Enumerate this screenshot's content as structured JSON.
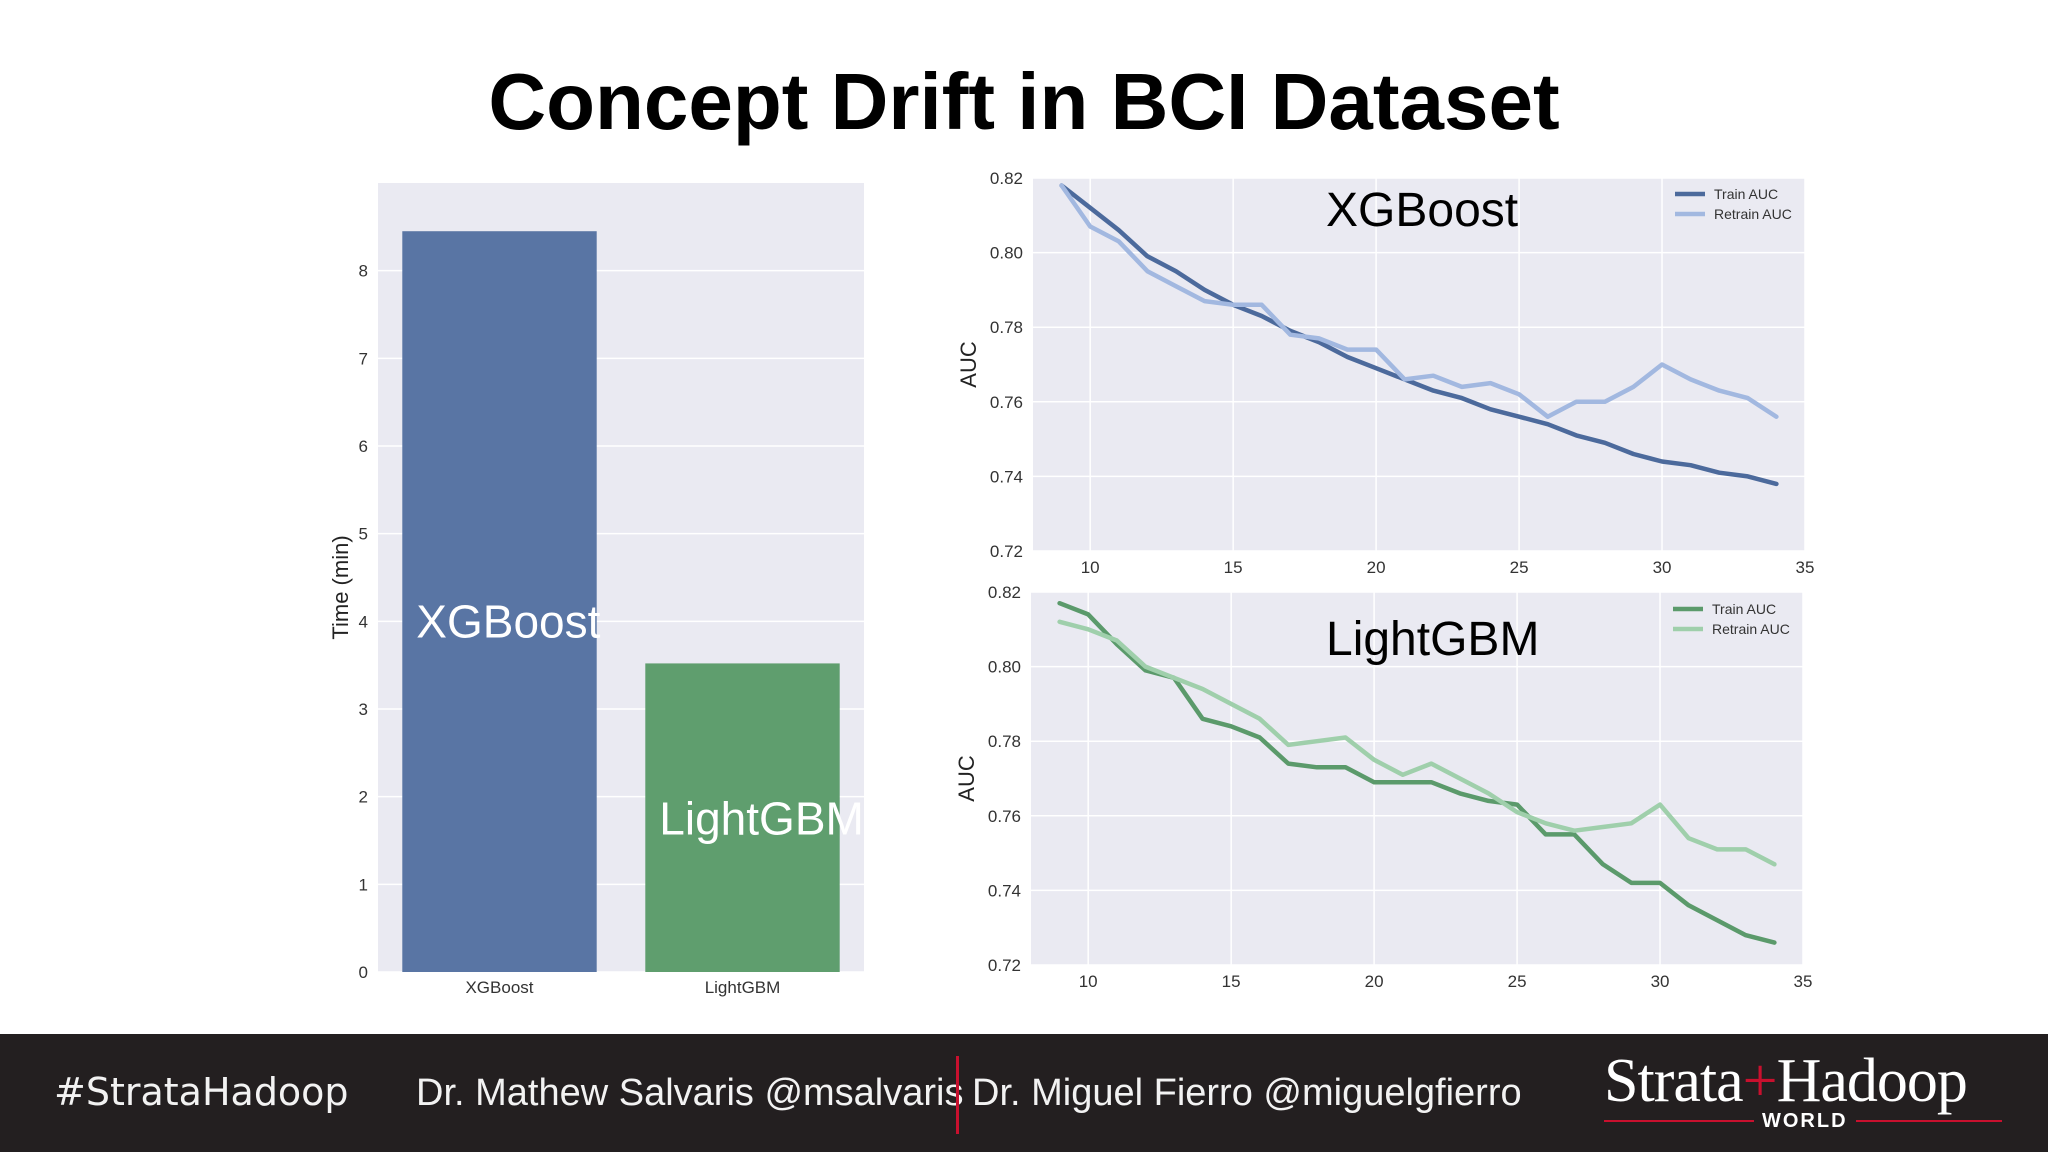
{
  "slide": {
    "title": "Concept Drift in BCI Dataset"
  },
  "chart_data": [
    {
      "type": "bar",
      "categories": [
        "XGBoost",
        "LightGBM"
      ],
      "values": [
        8.45,
        3.52
      ],
      "colors": [
        "#5975a4",
        "#5f9e6e"
      ],
      "bar_annotations": [
        "XGBoost",
        "LightGBM"
      ],
      "xlabel": "",
      "ylabel": "Time (min)",
      "ylim": [
        0,
        9.0
      ],
      "yticks": [
        0,
        1,
        2,
        3,
        4,
        5,
        6,
        7,
        8
      ],
      "grid": true,
      "background": "#eaeaf2"
    },
    {
      "type": "line",
      "annotation": "XGBoost",
      "ylabel": "AUC",
      "xlim": [
        8,
        35
      ],
      "ylim": [
        0.72,
        0.82
      ],
      "xticks": [
        10,
        15,
        20,
        25,
        30,
        35
      ],
      "yticks": [
        "0.72",
        "0.74",
        "0.76",
        "0.78",
        "0.80",
        "0.82"
      ],
      "grid": true,
      "legend_position": "top-right",
      "x": [
        9,
        10,
        11,
        12,
        13,
        14,
        15,
        16,
        17,
        18,
        19,
        20,
        21,
        22,
        23,
        24,
        25,
        26,
        27,
        28,
        29,
        30,
        31,
        32,
        33,
        34
      ],
      "series": [
        {
          "name": "Train AUC",
          "color": "#4c6a9c",
          "values": [
            0.818,
            0.812,
            0.806,
            0.799,
            0.795,
            0.79,
            0.786,
            0.783,
            0.779,
            0.776,
            0.772,
            0.769,
            0.766,
            0.763,
            0.761,
            0.758,
            0.756,
            0.754,
            0.751,
            0.749,
            0.746,
            0.744,
            0.743,
            0.741,
            0.74,
            0.738
          ]
        },
        {
          "name": "Retrain AUC",
          "color": "#a2b8e0",
          "values": [
            0.818,
            0.807,
            0.803,
            0.795,
            0.791,
            0.787,
            0.786,
            0.786,
            0.778,
            0.777,
            0.774,
            0.774,
            0.766,
            0.767,
            0.764,
            0.765,
            0.762,
            0.756,
            0.76,
            0.76,
            0.764,
            0.77,
            0.766,
            0.763,
            0.761,
            0.756
          ]
        }
      ]
    },
    {
      "type": "line",
      "annotation": "LightGBM",
      "ylabel": "AUC",
      "xlim": [
        8,
        35
      ],
      "ylim": [
        0.72,
        0.82
      ],
      "xticks": [
        10,
        15,
        20,
        25,
        30,
        35
      ],
      "yticks": [
        "0.72",
        "0.74",
        "0.76",
        "0.78",
        "0.80",
        "0.82"
      ],
      "grid": true,
      "legend_position": "top-right",
      "x": [
        9,
        10,
        11,
        12,
        13,
        14,
        15,
        16,
        17,
        18,
        19,
        20,
        21,
        22,
        23,
        24,
        25,
        26,
        27,
        28,
        29,
        30,
        31,
        32,
        33,
        34
      ],
      "series": [
        {
          "name": "Train AUC",
          "color": "#5b9a6b",
          "values": [
            0.817,
            0.814,
            0.806,
            0.799,
            0.797,
            0.786,
            0.784,
            0.781,
            0.774,
            0.773,
            0.773,
            0.769,
            0.769,
            0.769,
            0.766,
            0.764,
            0.763,
            0.755,
            0.755,
            0.747,
            0.742,
            0.742,
            0.736,
            0.732,
            0.728,
            0.726
          ]
        },
        {
          "name": "Retrain AUC",
          "color": "#9fcfab",
          "values": [
            0.812,
            0.81,
            0.807,
            0.8,
            0.797,
            0.794,
            0.79,
            0.786,
            0.779,
            0.78,
            0.781,
            0.775,
            0.771,
            0.774,
            0.77,
            0.766,
            0.761,
            0.758,
            0.756,
            0.757,
            0.758,
            0.763,
            0.754,
            0.751,
            0.751,
            0.747
          ]
        }
      ]
    }
  ],
  "footer": {
    "hashtag": "#StrataHadoop",
    "author_left": "Dr. Mathew Salvaris @msalvaris",
    "author_right": "Dr. Miguel Fierro @miguelgfierro",
    "brand_left": "Strata",
    "brand_plus": "+",
    "brand_right": "Hadoop",
    "brand_sub": "WORLD"
  }
}
